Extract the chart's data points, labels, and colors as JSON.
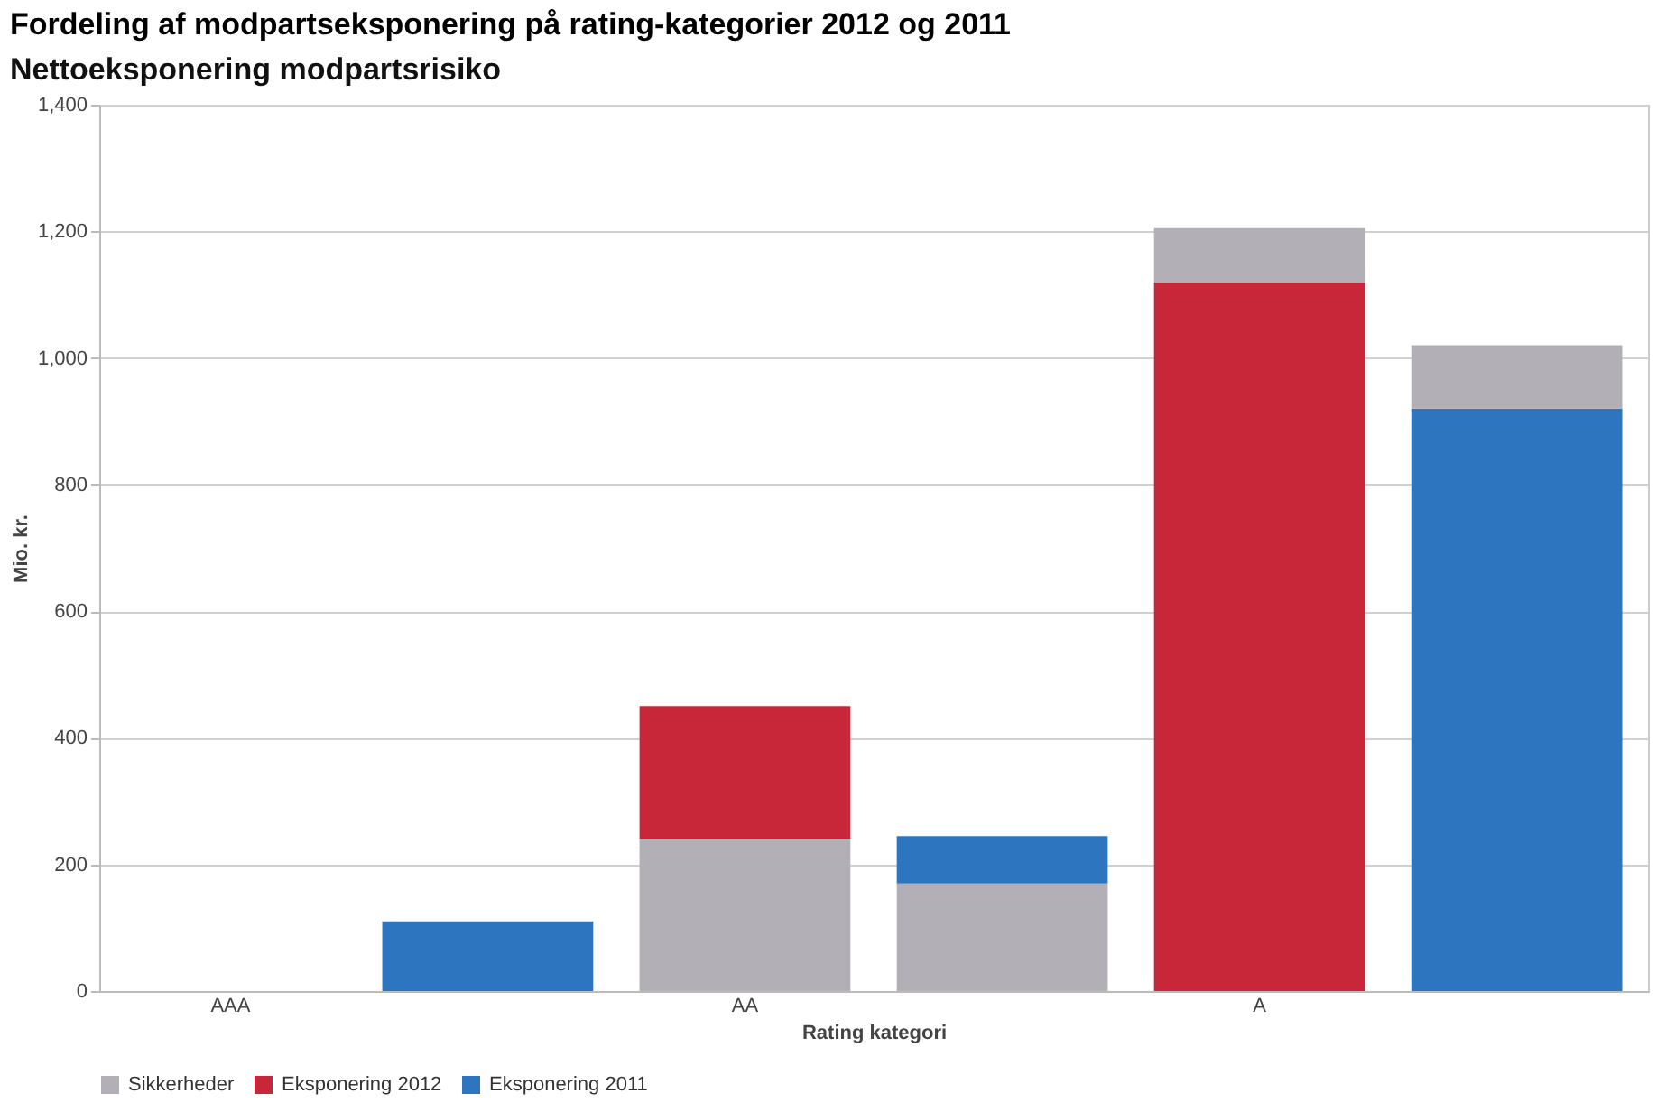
{
  "chart_data": {
    "type": "bar",
    "title": "Fordeling af modpartseksponering på rating-kategorier 2012 og 2011",
    "subtitle": "Nettoeksponering modpartsrisiko",
    "xlabel": "Rating kategori",
    "ylabel": "Mio. kr.",
    "categories": [
      "AAA",
      null,
      "AA",
      null,
      "A",
      null
    ],
    "stacked": true,
    "series": [
      {
        "name": "Sikkerheder",
        "color": "#b2b0b6",
        "values": [
          null,
          null,
          240,
          170,
          null,
          null
        ]
      },
      {
        "name": "Eksponering 2012",
        "color": "#c8273a",
        "values": [
          null,
          null,
          210,
          null,
          1120,
          null
        ]
      },
      {
        "name": "Eksponering 2011",
        "color": "#2e75c0",
        "values": [
          null,
          110,
          null,
          75,
          null,
          920
        ]
      },
      {
        "color": "#b2b0b6",
        "values": [
          null,
          null,
          null,
          null,
          85,
          100
        ]
      }
    ],
    "ylim": [
      0,
      1400
    ],
    "yticks": [
      0,
      200,
      400,
      600,
      800,
      {
        "value": 1000,
        "label": "1,000"
      },
      {
        "value": 1200,
        "label": "1,200"
      },
      {
        "value": 1400,
        "label": "1,400"
      }
    ],
    "grid": "y",
    "legend": "bottom"
  }
}
